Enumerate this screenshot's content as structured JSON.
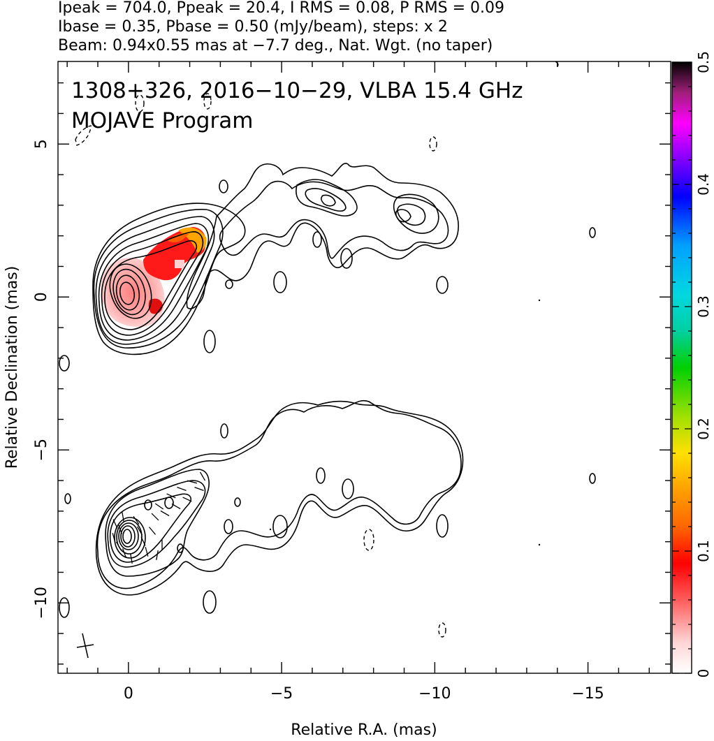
{
  "chart_data": {
    "type": "contour",
    "header": {
      "line1": "Ipeak = 704.0, Ppeak = 20.4, I RMS = 0.08, P RMS = 0.09",
      "line2": "Ibase = 0.35, Pbase = 0.50 (mJy/beam), steps: x 2",
      "line3": "Beam: 0.94x0.55 mas at −7.7 deg., Nat. Wgt. (no taper)"
    },
    "title": "1308+326, 2016−10−29, VLBA 15.4 GHz",
    "subtitle": "MOJAVE Program",
    "xlabel": "Relative R.A. (mas)",
    "ylabel": "Relative Declination (mas)",
    "xlim": [
      2.3,
      -17.7
    ],
    "ylim": [
      -12.3,
      7.7
    ],
    "xticks": [
      0,
      -5,
      -10,
      -15
    ],
    "xtick_labels": [
      "0",
      "−5",
      "−10",
      "−15"
    ],
    "yticks": [
      5,
      0,
      -5,
      -10
    ],
    "ytick_labels": [
      "5",
      "0",
      "−5",
      "−10"
    ],
    "colorbar": {
      "range": [
        0,
        0.5
      ],
      "ticks": [
        0,
        0.1,
        0.2,
        0.3,
        0.4,
        0.5
      ],
      "tick_labels": [
        "0",
        "0.1",
        "0.2",
        "0.3",
        "0.4",
        "0.5"
      ]
    },
    "panels": [
      {
        "name": "polarization fraction",
        "center": [
          0,
          0
        ]
      },
      {
        "name": "total intensity with EVPA",
        "center": [
          0,
          -8
        ]
      }
    ],
    "stats": {
      "Ipeak": 704.0,
      "Ppeak": 20.4,
      "I_RMS": 0.08,
      "P_RMS": 0.09,
      "Ibase": 0.35,
      "Pbase": 0.5,
      "units": "mJy/beam",
      "contour_step": 2,
      "beam_major_mas": 0.94,
      "beam_minor_mas": 0.55,
      "beam_pa_deg": -7.7
    }
  }
}
